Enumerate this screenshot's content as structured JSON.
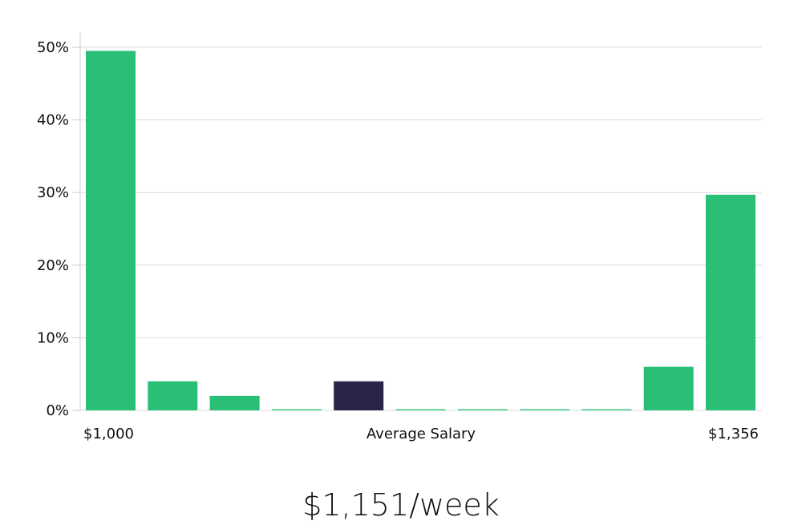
{
  "chart_data": {
    "type": "bar",
    "categories": [
      "$1,000",
      "",
      "",
      "",
      "Average Salary",
      "",
      "",
      "",
      "",
      "",
      "$1,356"
    ],
    "values": [
      49.5,
      4,
      2,
      0.15,
      4,
      0.15,
      0.15,
      0.15,
      0.15,
      6,
      29.7
    ],
    "highlight_index": 4,
    "y_ticks": [
      "0%",
      "10%",
      "20%",
      "30%",
      "40%",
      "50%"
    ],
    "y_tick_values": [
      0,
      10,
      20,
      30,
      40,
      50
    ],
    "ylim": [
      0,
      50
    ],
    "x_labels": {
      "left": "$1,000",
      "center": "Average Salary",
      "right": "$1,356"
    },
    "grid": true,
    "colors": {
      "bar": "#2abf76",
      "highlight": "#28244a",
      "grid": "#dddddd",
      "axis": "#cccccc"
    }
  },
  "salary_caption": "$1,151/week"
}
